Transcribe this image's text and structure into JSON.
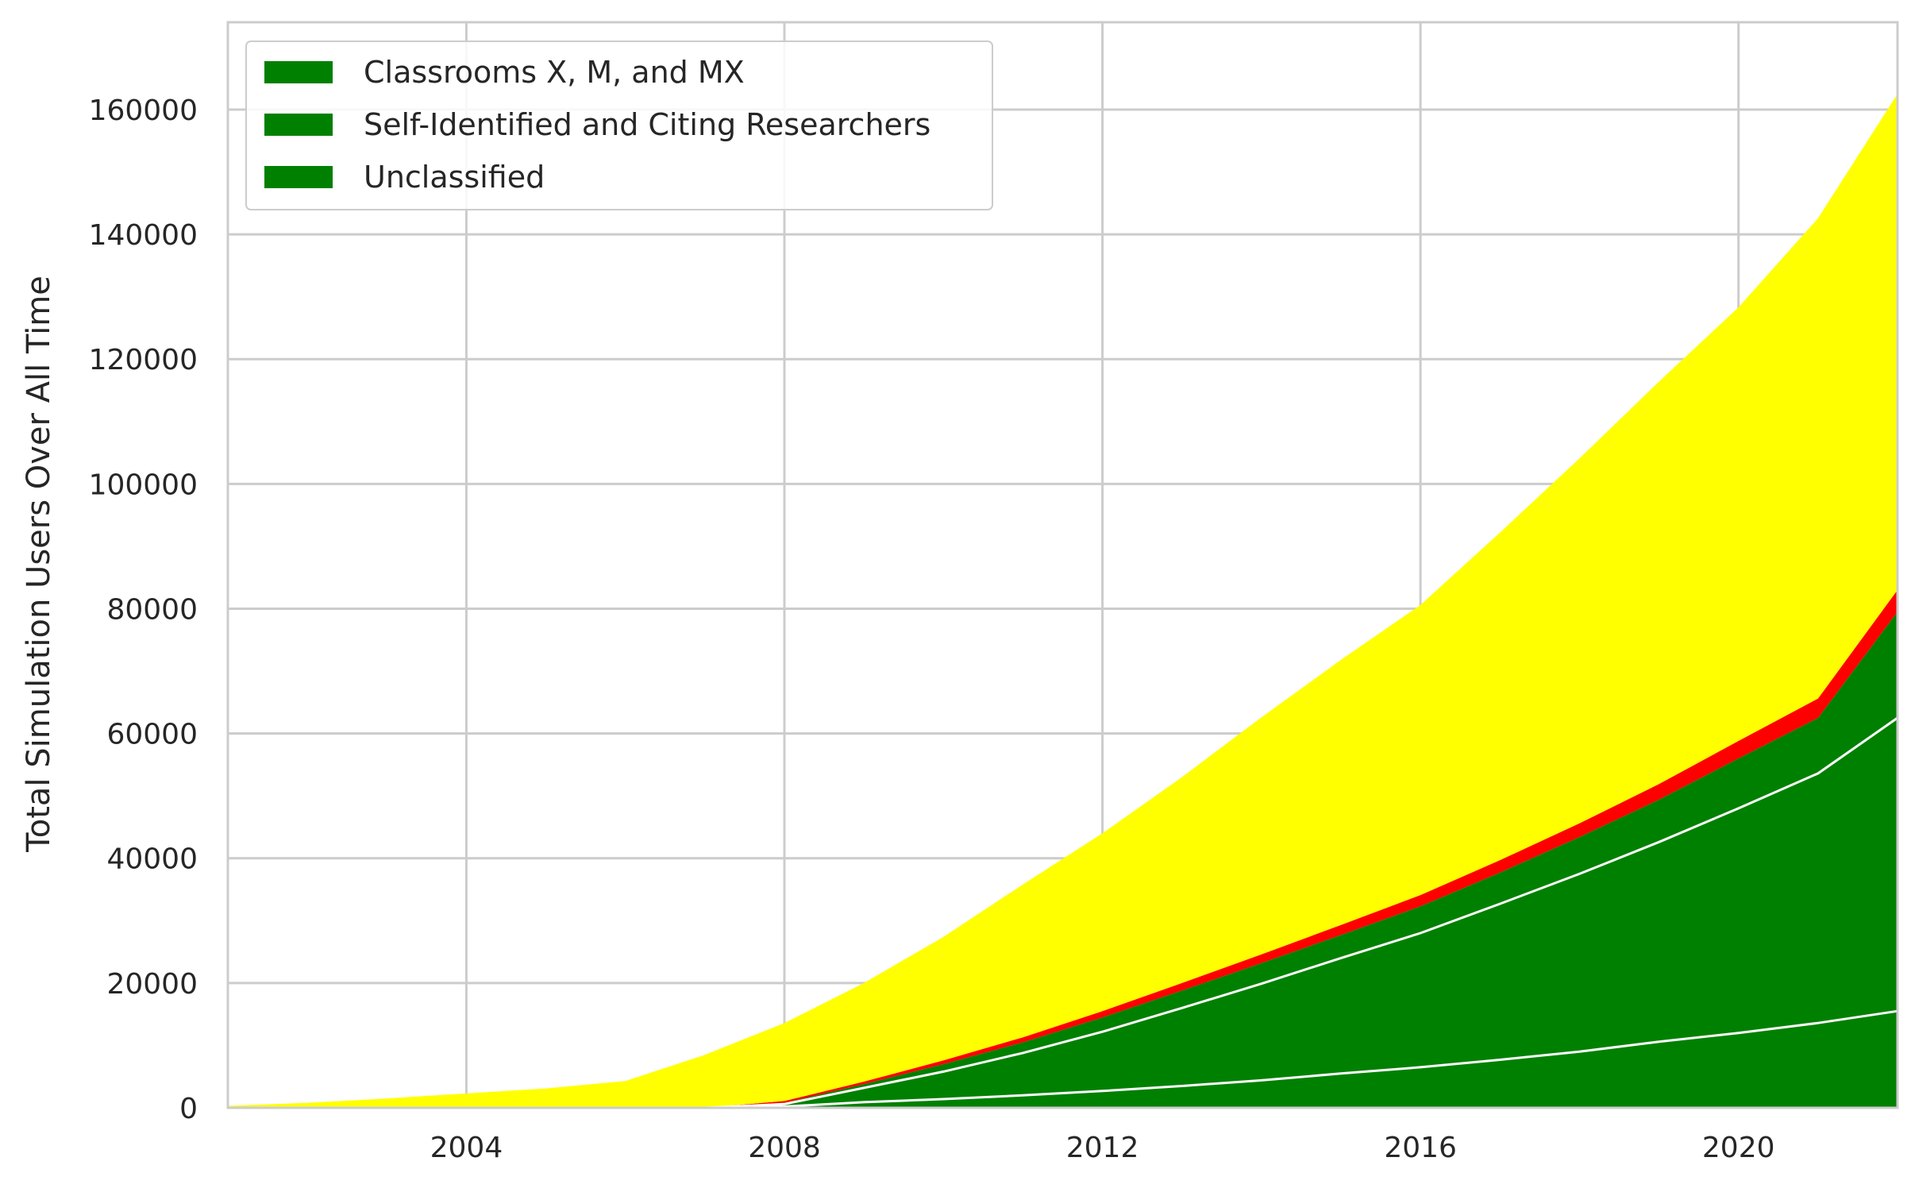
{
  "chart_data": {
    "type": "area",
    "title": "",
    "xlabel": "",
    "ylabel": "Total Simulation Users Over All Time",
    "xlim": [
      2001.0,
      2022.0
    ],
    "ylim": [
      0,
      174000
    ],
    "x_ticks": [
      2004,
      2008,
      2012,
      2016,
      2020
    ],
    "y_ticks": [
      0,
      20000,
      40000,
      60000,
      80000,
      100000,
      120000,
      140000,
      160000
    ],
    "grid": true,
    "legend_position": "top-left",
    "legend": [
      {
        "label": "Classrooms X, M, and MX",
        "color": "#008000"
      },
      {
        "label": "Self-Identified and Citing Researchers",
        "color": "#008000"
      },
      {
        "label": "Unclassified",
        "color": "#008000"
      }
    ],
    "x": [
      2001,
      2002,
      2003,
      2004,
      2005,
      2006,
      2007,
      2008,
      2009,
      2010,
      2011,
      2012,
      2013,
      2014,
      2015,
      2016,
      2017,
      2018,
      2019,
      2020,
      2021,
      2022
    ],
    "series": [
      {
        "color": "#008000",
        "values": [
          0,
          0,
          0,
          0,
          0,
          0,
          0,
          200,
          900,
          1400,
          2000,
          2700,
          3500,
          4400,
          5500,
          6500,
          7700,
          9000,
          10600,
          12000,
          13600,
          15500
        ]
      },
      {
        "color": "#008000",
        "values": [
          0,
          0,
          0,
          0,
          0,
          0,
          0,
          400,
          2300,
          4400,
          6800,
          9500,
          12500,
          15500,
          18500,
          21500,
          25000,
          28500,
          32000,
          36000,
          40000,
          47000
        ]
      },
      {
        "color": "#008000",
        "values": [
          0,
          0,
          0,
          0,
          0,
          0,
          0,
          200,
          600,
          1200,
          1700,
          2300,
          2800,
          3300,
          3700,
          4300,
          5000,
          5900,
          6800,
          8000,
          8900,
          17000
        ]
      },
      {
        "color": "#ff0000",
        "values": [
          0,
          0,
          0,
          0,
          0,
          0,
          0,
          300,
          400,
          600,
          800,
          1000,
          1200,
          1400,
          1600,
          1800,
          2000,
          2200,
          2500,
          2800,
          3100,
          3500
        ]
      },
      {
        "color": "#ffff00",
        "values": [
          300,
          800,
          1500,
          2300,
          3100,
          4300,
          8500,
          12500,
          15800,
          19800,
          24500,
          28500,
          33000,
          38000,
          42500,
          46500,
          52500,
          58500,
          64500,
          69500,
          77000,
          79500
        ]
      }
    ]
  }
}
